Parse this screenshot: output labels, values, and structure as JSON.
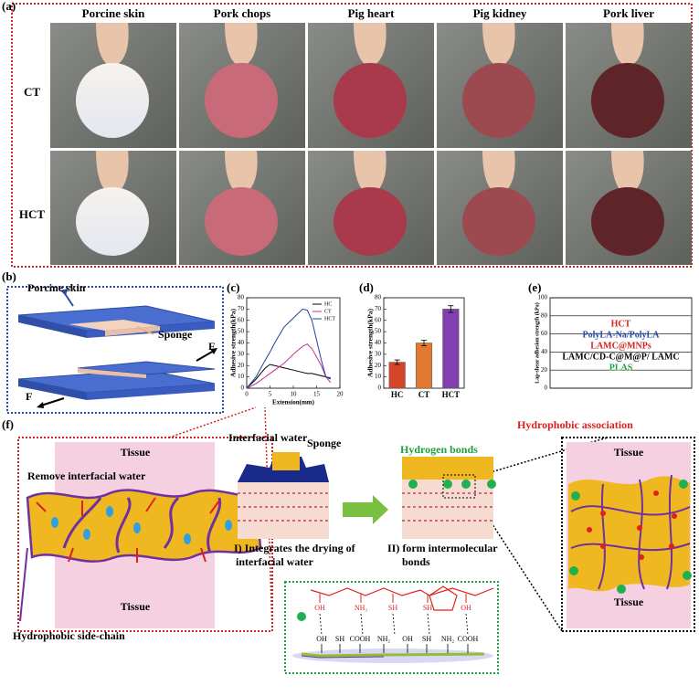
{
  "panel_labels": [
    "(a)",
    "(b)",
    "(c)",
    "(d)",
    "(e)",
    "(f)"
  ],
  "a": {
    "columns": [
      "Porcine skin",
      "Pork chops",
      "Pig heart",
      "Pig kidney",
      "Pork liver"
    ],
    "rows": [
      "CT",
      "HCT"
    ]
  },
  "b": {
    "porcine_skin": "Porcine skin",
    "sponge": "Sponge",
    "force_top": "F",
    "force_bottom": "F"
  },
  "chart_data": [
    {
      "type": "line",
      "ylabel": "Adhesive strength(kPa)",
      "xlabel": "Extension(mm)",
      "x": [
        0,
        2,
        4,
        5,
        6,
        8,
        10,
        12,
        13,
        14,
        16,
        17,
        18
      ],
      "series": [
        {
          "name": "HC",
          "color": "#000000",
          "values": [
            0,
            8,
            18,
            21,
            20,
            18,
            16,
            14,
            13,
            13,
            11,
            10,
            9
          ]
        },
        {
          "name": "CT",
          "color": "#c0309a",
          "values": [
            0,
            4,
            10,
            13,
            16,
            22,
            30,
            37,
            39,
            35,
            20,
            10,
            5
          ]
        },
        {
          "name": "HCT",
          "color": "#2040a0",
          "values": [
            0,
            10,
            25,
            32,
            40,
            54,
            62,
            70,
            69,
            60,
            25,
            10,
            8
          ]
        }
      ],
      "xlim": [
        0,
        20
      ],
      "ylim": [
        0,
        80
      ],
      "xticks": [
        0,
        5,
        10,
        15,
        20
      ],
      "yticks": [
        0,
        10,
        20,
        30,
        40,
        50,
        60,
        70,
        80
      ],
      "legend": "upper right"
    },
    {
      "type": "bar",
      "ylabel": "Adhesive strength(kPa)",
      "categories": [
        "HC",
        "CT",
        "HCT"
      ],
      "values": [
        23,
        40,
        70
      ],
      "errors": [
        2,
        2.5,
        3
      ],
      "colors": [
        "#d4452a",
        "#e07a30",
        "#8040b0"
      ],
      "ylim": [
        0,
        80
      ],
      "yticks": [
        0,
        10,
        20,
        30,
        40,
        50,
        60,
        70,
        80
      ]
    },
    {
      "type": "bar",
      "ylabel": "Lap-shear adhesion strength (kPa)",
      "ylim": [
        0,
        100
      ],
      "yticks": [
        0,
        20,
        40,
        60,
        80,
        100
      ],
      "grid": true,
      "entries": [
        {
          "name": "HCT",
          "color": "#d62020"
        },
        {
          "name": "PolyLA-Na/PolyLA",
          "color": "#2a4aa8"
        },
        {
          "name": "LAMC@MNPs",
          "color": "#d62020"
        },
        {
          "name": "LAMC/CD-C@M@P/ LAMC",
          "color": "#000000"
        },
        {
          "name": "PLAS",
          "color": "#20a040"
        }
      ]
    }
  ],
  "f": {
    "left_tissue_top": "Tissue",
    "remove_water": "Remove interfacial water",
    "left_tissue_bottom": "Tissue",
    "hydrophobic_side_chain": "Hydrophobic side-chain",
    "interfacial_water": "Interfacial water",
    "sponge": "Sponge",
    "hydrogen_bonds": "Hydrogen bonds",
    "step1": [
      "I) Integrates the drying of",
      "interfacial water"
    ],
    "step2": [
      "II) form intermolecular",
      "bonds"
    ],
    "hydrophobic_association": "Hydrophobic association",
    "right_tissue_top": "Tissue",
    "right_tissue_bottom": "Tissue",
    "top_groups": [
      "OH",
      "NH₃",
      "SH",
      "SH",
      "OH"
    ],
    "bottom_groups": [
      "OH",
      "SH",
      "COOH",
      "NH₂",
      "OH",
      "SH",
      "NH₂",
      "COOH"
    ]
  }
}
